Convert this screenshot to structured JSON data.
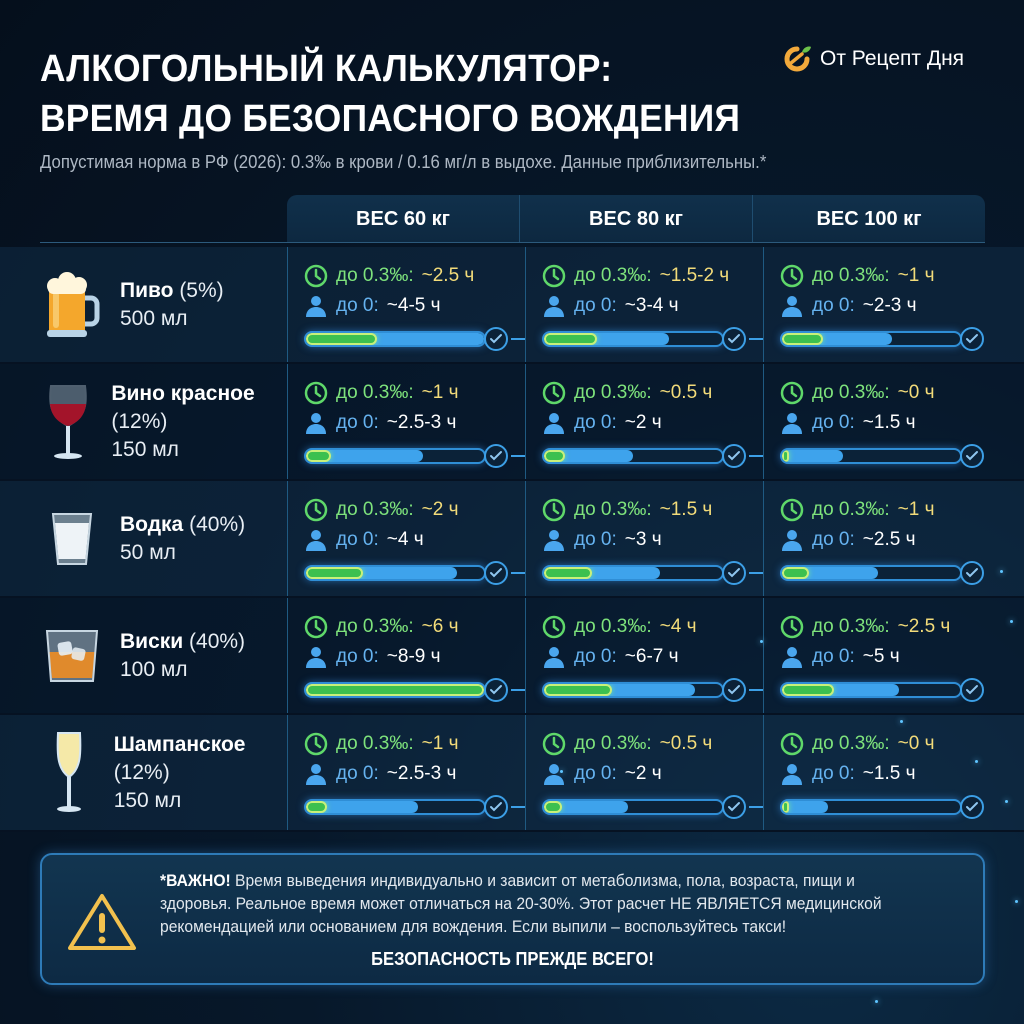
{
  "header": {
    "title_line1": "АЛКОГОЛЬНЫЙ КАЛЬКУЛЯТОР:",
    "title_line2": "ВРЕМЯ ДО БЕЗОПАСНОГО ВОЖДЕНИЯ",
    "subtitle": "Допустимая норма в РФ (2026): 0.3‰ в крови / 0.16 мг/л в выдохе. Данные приблизительны.*",
    "brand": {
      "name": "От Рецепт Дня",
      "icon": "citrus-logo-icon",
      "accent": "#f2a93b",
      "leaf": "#6cc24a"
    }
  },
  "columns": [
    {
      "label": "ВЕС 60 кг"
    },
    {
      "label": "ВЕС 80 кг"
    },
    {
      "label": "ВЕС 100 кг"
    }
  ],
  "labels": {
    "to_limit": "до 0.3‰:",
    "to_zero": "до 0:"
  },
  "colors": {
    "green": "#3cc04f",
    "blue": "#3ea3ec",
    "yellow_text": "#f3dc7a",
    "green_text": "#7ee37c",
    "warning": "#f2c14e"
  },
  "drinks": [
    {
      "name": "Пиво",
      "abv": "(5%)",
      "volume": "500 мл",
      "icon": "beer-mug-icon",
      "cells": [
        {
          "to_limit": "~2.5 ч",
          "to_zero": "~4-5 ч",
          "green_pct": 40,
          "blue_pct": 100
        },
        {
          "to_limit": "~1.5-2 ч",
          "to_zero": "~3-4 ч",
          "green_pct": 30,
          "blue_pct": 70
        },
        {
          "to_limit": "~1 ч",
          "to_zero": "~2-3 ч",
          "green_pct": 23,
          "blue_pct": 62
        }
      ]
    },
    {
      "name": "Вино красное",
      "abv": "(12%)",
      "volume": "150 мл",
      "icon": "wine-glass-icon",
      "cells": [
        {
          "to_limit": "~1 ч",
          "to_zero": "~2.5-3 ч",
          "green_pct": 14,
          "blue_pct": 66
        },
        {
          "to_limit": "~0.5 ч",
          "to_zero": "~2 ч",
          "green_pct": 12,
          "blue_pct": 50
        },
        {
          "to_limit": "~0 ч",
          "to_zero": "~1.5 ч",
          "green_pct": 2,
          "blue_pct": 34
        }
      ]
    },
    {
      "name": "Водка",
      "abv": "(40%)",
      "volume": "50 мл",
      "icon": "shot-glass-icon",
      "cells": [
        {
          "to_limit": "~2 ч",
          "to_zero": "~4 ч",
          "green_pct": 32,
          "blue_pct": 85
        },
        {
          "to_limit": "~1.5 ч",
          "to_zero": "~3 ч",
          "green_pct": 27,
          "blue_pct": 65
        },
        {
          "to_limit": "~1 ч",
          "to_zero": "~2.5 ч",
          "green_pct": 15,
          "blue_pct": 54
        }
      ]
    },
    {
      "name": "Виски",
      "abv": "(40%)",
      "volume": "100 мл",
      "icon": "whiskey-glass-icon",
      "cells": [
        {
          "to_limit": "~6 ч",
          "to_zero": "~8-9 ч",
          "green_pct": 100,
          "blue_pct": 100
        },
        {
          "to_limit": "~4 ч",
          "to_zero": "~6-7 ч",
          "green_pct": 38,
          "blue_pct": 85
        },
        {
          "to_limit": "~2.5 ч",
          "to_zero": "~5 ч",
          "green_pct": 29,
          "blue_pct": 66
        }
      ]
    },
    {
      "name": "Шампанское",
      "abv": "(12%)",
      "volume": "150 мл",
      "icon": "champagne-flute-icon",
      "cells": [
        {
          "to_limit": "~1 ч",
          "to_zero": "~2.5-3 ч",
          "green_pct": 12,
          "blue_pct": 63
        },
        {
          "to_limit": "~0.5 ч",
          "to_zero": "~2 ч",
          "green_pct": 10,
          "blue_pct": 47
        },
        {
          "to_limit": "~0 ч",
          "to_zero": "~1.5 ч",
          "green_pct": 2,
          "blue_pct": 26
        }
      ]
    }
  ],
  "notice": {
    "lead": "*ВАЖНО!",
    "body": " Время выведения индивидуально и зависит от метаболизма, пола, возраста, пищи и здоровья. Реальное время может отличаться на 20-30%. Этот расчет НЕ ЯВЛЯЕТСЯ медицинской рекомендацией или основанием для вождения. Если выпили – воспользуйтесь такси!",
    "footer": "БЕЗОПАСНОСТЬ ПРЕЖДЕ ВСЕГО!",
    "icon": "warning-triangle-icon"
  }
}
